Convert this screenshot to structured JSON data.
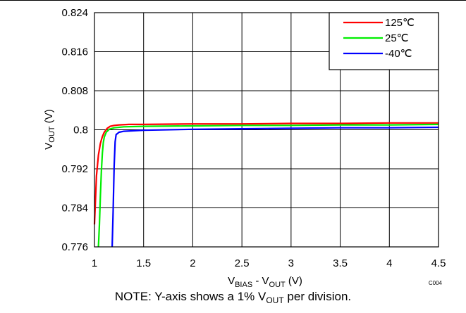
{
  "chart_data": {
    "type": "line",
    "xlabel": {
      "main": "V",
      "sub1": "BIAS",
      "mid": " - V",
      "sub2": "OUT",
      "unit": " (V)"
    },
    "ylabel": {
      "main": "V",
      "sub": "OUT",
      "unit": " (V)"
    },
    "xlim": [
      1,
      4.5
    ],
    "ylim": [
      0.776,
      0.824
    ],
    "x_ticks": [
      1,
      1.5,
      2,
      2.5,
      3,
      3.5,
      4,
      4.5
    ],
    "x_tick_labels": [
      "1",
      "1.5",
      "2",
      "2.5",
      "3",
      "3.5",
      "4",
      "4.5"
    ],
    "y_ticks": [
      0.776,
      0.784,
      0.792,
      0.8,
      0.808,
      0.816,
      0.824
    ],
    "y_tick_labels": [
      "0.776",
      "0.784",
      "0.792",
      "0.8",
      "0.808",
      "0.816",
      "0.824"
    ],
    "grid": true,
    "legend_position": "top-right",
    "code": "C004",
    "series": [
      {
        "name": "125℃",
        "color": "#ff0000",
        "x": [
          1.0,
          1.01,
          1.02,
          1.04,
          1.06,
          1.08,
          1.1,
          1.13,
          1.16,
          1.2,
          1.25,
          1.35,
          1.5,
          2.0,
          2.5,
          3.0,
          3.5,
          4.0,
          4.5
        ],
        "y": [
          0.7806,
          0.7855,
          0.7905,
          0.7948,
          0.7972,
          0.7986,
          0.7995,
          0.8003,
          0.8007,
          0.8009,
          0.801,
          0.8011,
          0.8011,
          0.8012,
          0.8012,
          0.8013,
          0.8013,
          0.8014,
          0.8014
        ]
      },
      {
        "name": "25℃",
        "color": "#00ee00",
        "x": [
          1.04,
          1.05,
          1.06,
          1.07,
          1.08,
          1.09,
          1.1,
          1.12,
          1.15,
          1.2,
          1.3,
          1.5,
          2.0,
          2.5,
          3.0,
          3.5,
          4.0,
          4.5
        ],
        "y": [
          0.776,
          0.7805,
          0.7865,
          0.7915,
          0.7952,
          0.7973,
          0.7985,
          0.7995,
          0.8001,
          0.8004,
          0.8006,
          0.8007,
          0.8008,
          0.8009,
          0.8009,
          0.801,
          0.801,
          0.8011
        ]
      },
      {
        "name": "-40℃",
        "color": "#0000ff",
        "x": [
          1.18,
          1.19,
          1.2,
          1.21,
          1.22,
          1.25,
          1.3,
          1.4,
          1.5,
          2.0,
          2.5,
          3.0,
          3.5,
          4.0,
          4.5
        ],
        "y": [
          0.776,
          0.7835,
          0.7925,
          0.7975,
          0.799,
          0.7995,
          0.7997,
          0.7998,
          0.7999,
          0.8001,
          0.8002,
          0.8003,
          0.8004,
          0.8004,
          0.8005
        ]
      }
    ]
  },
  "note": {
    "prefix": "NOTE: Y-axis shows a 1% V",
    "sub": "OUT",
    "suffix": " per division."
  }
}
